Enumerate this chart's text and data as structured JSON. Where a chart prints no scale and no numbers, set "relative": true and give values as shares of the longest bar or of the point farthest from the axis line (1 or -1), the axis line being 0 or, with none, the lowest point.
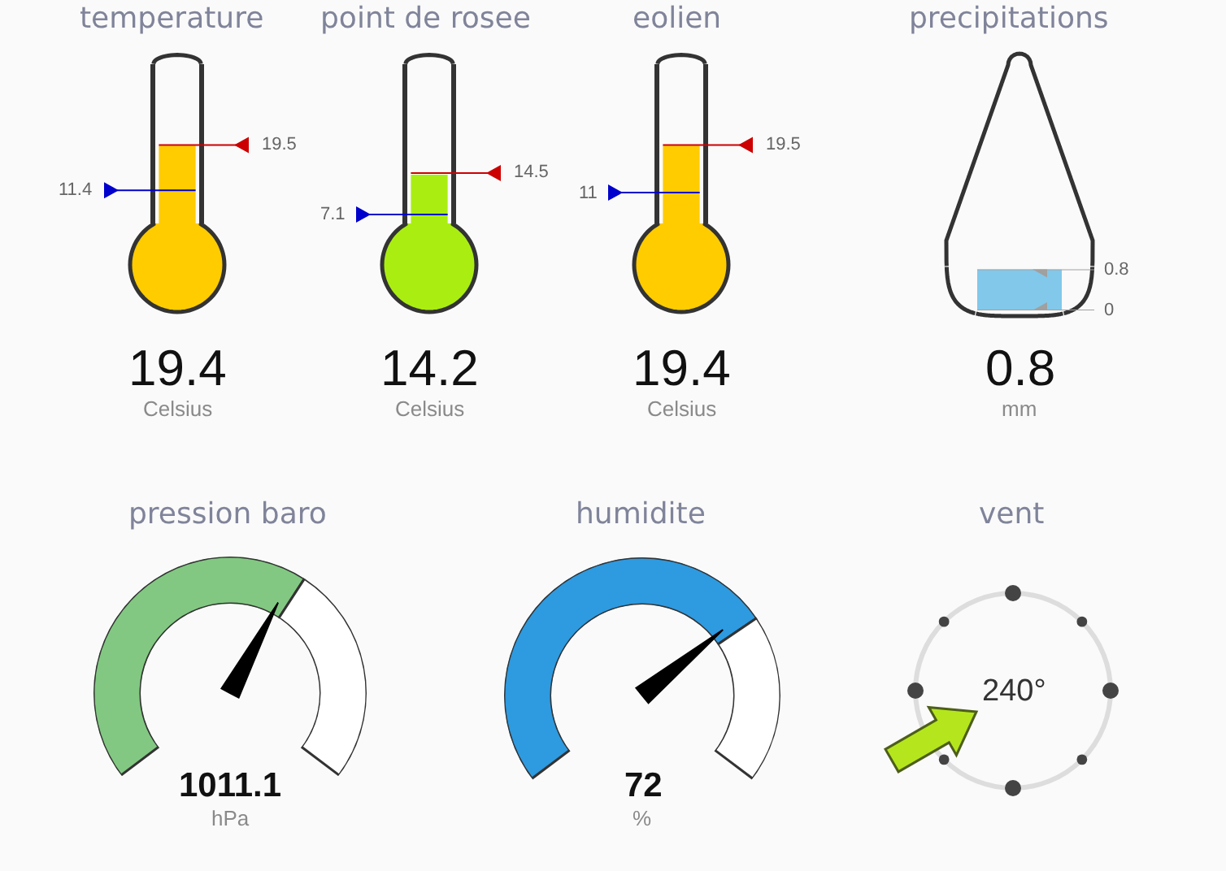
{
  "chart_data": [
    {
      "type": "bar",
      "title": "temperature",
      "categories": [
        null
      ],
      "values": [
        19.4
      ],
      "color": "#ffcc00",
      "ylim": [
        5.5,
        34
      ],
      "data_labels": true,
      "xlabel": "Celsius",
      "ref_lines": [
        {
          "axis": "y",
          "value": 11.4,
          "label": "11.4",
          "color": "#0000cc"
        },
        {
          "axis": "y",
          "value": 19.5,
          "label": "19.5",
          "color": "#cc0000"
        }
      ]
    },
    {
      "type": "bar",
      "title": "point de rosee",
      "categories": [
        null
      ],
      "values": [
        14.2
      ],
      "color": "#aaee11",
      "ylim": [
        5.5,
        34
      ],
      "data_labels": true,
      "xlabel": "Celsius",
      "ref_lines": [
        {
          "axis": "y",
          "value": 7.1,
          "label": "7.1",
          "color": "#0000cc"
        },
        {
          "axis": "y",
          "value": 14.5,
          "label": "14.5",
          "color": "#cc0000"
        }
      ]
    },
    {
      "type": "bar",
      "title": "eolien",
      "categories": [
        null
      ],
      "values": [
        19.4
      ],
      "color": "#ffcc00",
      "ylim": [
        5.5,
        34
      ],
      "data_labels": true,
      "xlabel": "Celsius",
      "ref_lines": [
        {
          "axis": "y",
          "value": 11,
          "label": "11",
          "color": "#0000cc"
        },
        {
          "axis": "y",
          "value": 19.5,
          "label": "19.5",
          "color": "#cc0000"
        }
      ]
    },
    {
      "type": "bar",
      "title": "precipitations",
      "categories": [
        null
      ],
      "values": [
        0.8
      ],
      "color": "#82c8ea",
      "ylim": [
        0,
        0.8
      ],
      "data_labels": true,
      "xlabel": "mm",
      "ref_lines": [
        {
          "axis": "y",
          "value": 0.8,
          "label": "0.8",
          "color": "#a0a0a0"
        },
        {
          "axis": "y",
          "value": 0,
          "label": "0",
          "color": "#a0a0a0"
        }
      ]
    },
    {
      "type": "donut",
      "title": "pression baro",
      "relative": true,
      "categories": [
        null,
        null
      ],
      "values": [
        63,
        37
      ],
      "colors": [
        "#82c882",
        "#ffffff"
      ],
      "needle": null,
      "annotations": [
        "1011.1",
        "hPa"
      ]
    },
    {
      "type": "donut",
      "title": "humidite",
      "relative": true,
      "categories": [
        null,
        null
      ],
      "values": [
        72,
        28
      ],
      "colors": [
        "#2e9ae0",
        "#ffffff"
      ],
      "needle": null,
      "annotations": [
        "72",
        "%"
      ]
    },
    {
      "type": "other",
      "title": "vent",
      "values": [
        240
      ],
      "value_labels": [
        "240°"
      ],
      "color": "#b5e61d"
    }
  ]
}
